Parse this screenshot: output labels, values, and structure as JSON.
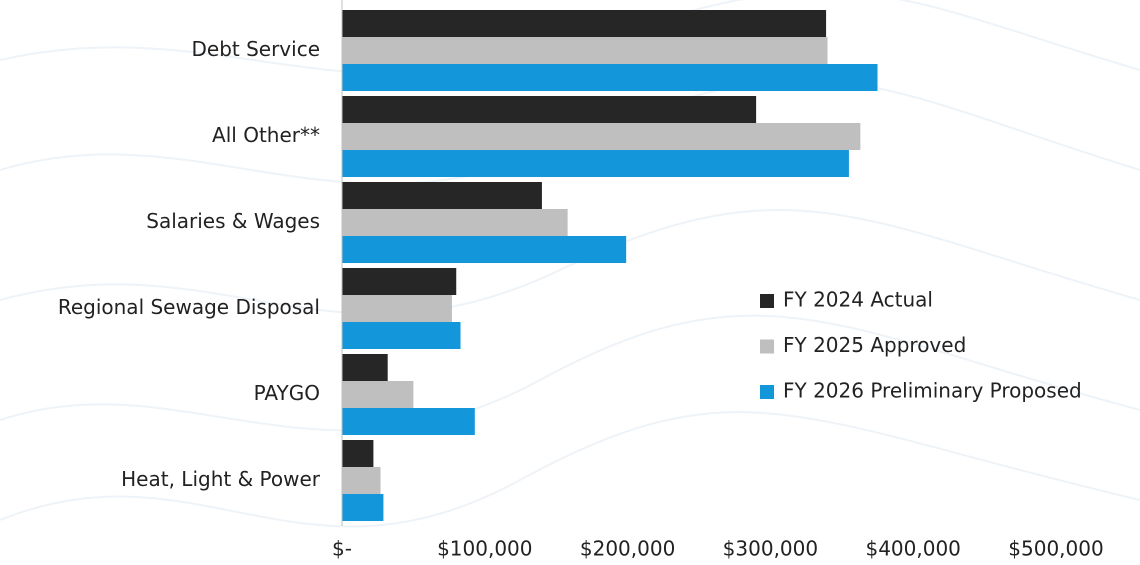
{
  "chart_data": {
    "type": "bar",
    "orientation": "horizontal",
    "categories": [
      "Debt Service",
      "All Other**",
      "Salaries & Wages",
      "Regional Sewage Disposal",
      "PAYGO",
      "Heat, Light & Power"
    ],
    "series": [
      {
        "name": "FY 2024 Actual",
        "color": "#262626",
        "values": [
          339000,
          290000,
          140000,
          80000,
          32000,
          22000
        ]
      },
      {
        "name": "FY 2025 Approved",
        "color": "#bfbfbf",
        "values": [
          340000,
          363000,
          158000,
          77000,
          50000,
          27000
        ]
      },
      {
        "name": "FY 2026 Preliminary Proposed",
        "color": "#1496db",
        "values": [
          375000,
          355000,
          199000,
          83000,
          93000,
          29000
        ]
      }
    ],
    "xlim": [
      0,
      500000
    ],
    "xticks": [
      {
        "value": 0,
        "label": "$-"
      },
      {
        "value": 100000,
        "label": "$100,000"
      },
      {
        "value": 200000,
        "label": "$200,000"
      },
      {
        "value": 300000,
        "label": "$300,000"
      },
      {
        "value": 400000,
        "label": "$400,000"
      },
      {
        "value": 500000,
        "label": "$500,000"
      }
    ],
    "legend": "right",
    "grid": false
  }
}
